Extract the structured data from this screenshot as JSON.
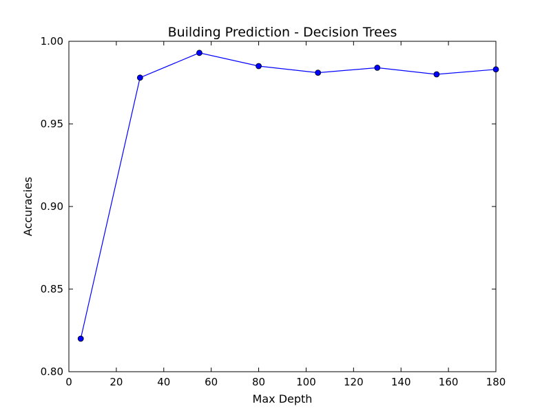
{
  "chart_data": {
    "type": "line",
    "title": "Building Prediction - Decision Trees",
    "xlabel": "Max Depth",
    "ylabel": "Accuracies",
    "xlim": [
      0,
      180
    ],
    "ylim": [
      0.8,
      1.0
    ],
    "xticks": [
      0,
      20,
      40,
      60,
      80,
      100,
      120,
      140,
      160,
      180
    ],
    "xtick_labels": [
      "0",
      "20",
      "40",
      "60",
      "80",
      "100",
      "120",
      "140",
      "160",
      "180"
    ],
    "yticks": [
      0.8,
      0.85,
      0.9,
      0.95,
      1.0
    ],
    "ytick_labels": [
      "0.80",
      "0.85",
      "0.90",
      "0.95",
      "1.00"
    ],
    "grid": false,
    "series": [
      {
        "color": "#0000ff",
        "marker": "circle",
        "x": [
          5,
          30,
          55,
          80,
          105,
          130,
          155,
          180
        ],
        "y": [
          0.82,
          0.978,
          0.993,
          0.985,
          0.981,
          0.984,
          0.98,
          0.983
        ]
      }
    ]
  }
}
